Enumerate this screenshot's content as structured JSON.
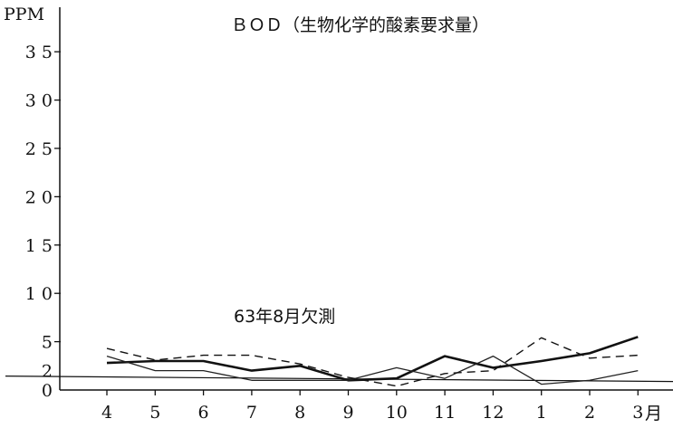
{
  "chart_data": {
    "type": "line",
    "title": "ＢＯＤ（生物化学的酸素要求量）",
    "ylabel": "PPM",
    "xunit": "月",
    "annotation": "63年8月欠測",
    "categories": [
      "4",
      "5",
      "6",
      "7",
      "8",
      "9",
      "10",
      "11",
      "12",
      "1",
      "2",
      "3"
    ],
    "ylim": [
      0,
      38
    ],
    "yticks": [
      0,
      2,
      5,
      10,
      15,
      20,
      25,
      30,
      35
    ],
    "ytick_labels": [
      "0",
      "2",
      "5",
      "1 0",
      "1 5",
      "2 0",
      "2 5",
      "3 0",
      "3 5"
    ],
    "grid": false,
    "series": [
      {
        "style": "solid-thick",
        "values": [
          2.8,
          3.0,
          3.0,
          2.0,
          2.5,
          1.0,
          1.2,
          3.5,
          2.3,
          3.0,
          3.8,
          5.5
        ]
      },
      {
        "style": "solid-thin",
        "values": [
          3.5,
          2.0,
          2.0,
          1.0,
          1.0,
          1.0,
          2.3,
          1.2,
          3.5,
          0.6,
          1.0,
          2.0
        ]
      },
      {
        "style": "dashed",
        "values": [
          4.3,
          3.1,
          3.6,
          3.6,
          2.7,
          1.3,
          0.4,
          1.7,
          2.0,
          5.4,
          3.3,
          3.6
        ]
      }
    ],
    "reference_line": {
      "value": 2.0
    }
  }
}
